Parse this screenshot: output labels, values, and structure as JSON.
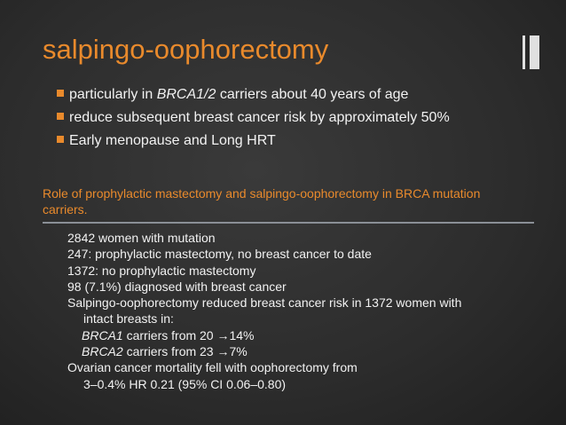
{
  "title": "salpingo-oophorectomy",
  "bullets": [
    [
      {
        "text": "particularly in "
      },
      {
        "text": "BRCA1/2",
        "italic": true
      },
      {
        "text": " carriers about 40 years of age"
      }
    ],
    [
      {
        "text": "reduce subsequent breast cancer risk by approximately 50%"
      }
    ],
    [
      {
        "text": "Early menopause and Long HRT"
      }
    ]
  ],
  "caption": "Role of prophylactic mastectomy and salpingo-oophorectomy in BRCA mutation carriers.",
  "box_lines": [
    {
      "indent": 0,
      "segments": [
        {
          "text": "2842 women with mutation"
        }
      ]
    },
    {
      "indent": 0,
      "segments": [
        {
          "text": "247: prophylactic mastectomy, no breast cancer to date"
        }
      ]
    },
    {
      "indent": 0,
      "segments": [
        {
          "text": "1372: no prophylactic mastectomy"
        }
      ]
    },
    {
      "indent": 0,
      "segments": [
        {
          "text": "98 (7.1%) diagnosed with breast cancer"
        }
      ]
    },
    {
      "indent": 0,
      "segments": [
        {
          "text": "Salpingo-oophorectomy reduced breast cancer risk in 1372 women with"
        }
      ]
    },
    {
      "indent": 1,
      "segments": [
        {
          "text": "intact breasts in:"
        }
      ]
    },
    {
      "indent": 2,
      "segments": [
        {
          "text": "BRCA1",
          "italic": true
        },
        {
          "text": " carriers from 20 →14%"
        }
      ]
    },
    {
      "indent": 2,
      "segments": [
        {
          "text": "BRCA2",
          "italic": true
        },
        {
          "text": " carriers from 23 →7%"
        }
      ]
    },
    {
      "indent": 0,
      "segments": [
        {
          "text": "Ovarian cancer mortality fell with oophorectomy from"
        }
      ]
    },
    {
      "indent": 1,
      "segments": [
        {
          "text": "3–0.4% HR 0.21 (95% CI 0.06–0.80)"
        }
      ]
    }
  ]
}
